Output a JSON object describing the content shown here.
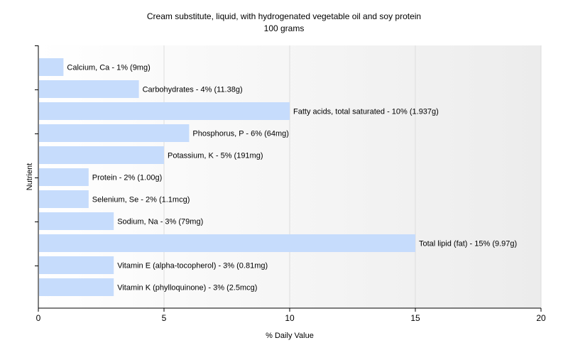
{
  "chart_data": {
    "type": "bar",
    "orientation": "horizontal",
    "title": "Cream substitute, liquid, with hydrogenated vegetable oil and soy protein",
    "subtitle": "100 grams",
    "xlabel": "% Daily Value",
    "ylabel": "Nutrient",
    "xlim": [
      0,
      20
    ],
    "xticks": [
      0,
      5,
      10,
      15,
      20
    ],
    "grid": true,
    "bar_color": "#c6dcfc",
    "categories": [
      "Calcium, Ca",
      "Carbohydrates",
      "Fatty acids, total saturated",
      "Phosphorus, P",
      "Potassium, K",
      "Protein",
      "Selenium, Se",
      "Sodium, Na",
      "Total lipid (fat)",
      "Vitamin E (alpha-tocopherol)",
      "Vitamin K (phylloquinone)"
    ],
    "values": [
      1,
      4,
      10,
      6,
      5,
      2,
      2,
      3,
      15,
      3,
      3
    ],
    "data_labels": [
      "Calcium, Ca - 1% (9mg)",
      "Carbohydrates - 4% (11.38g)",
      "Fatty acids, total saturated - 10% (1.937g)",
      "Phosphorus, P - 6% (64mg)",
      "Potassium, K - 5% (191mg)",
      "Protein - 2% (1.00g)",
      "Selenium, Se - 2% (1.1mcg)",
      "Sodium, Na - 3% (79mg)",
      "Total lipid (fat) - 15% (9.97g)",
      "Vitamin E (alpha-tocopherol) - 3% (0.81mg)",
      "Vitamin K (phylloquinone) - 3% (2.5mcg)"
    ]
  }
}
